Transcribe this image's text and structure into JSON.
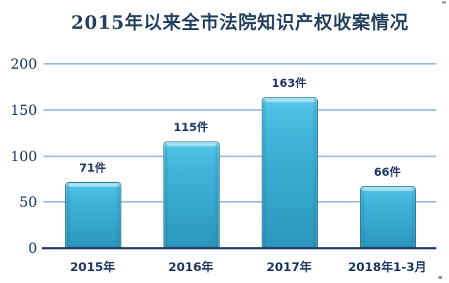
{
  "chart_data": {
    "type": "bar",
    "title": "2015年以来全市法院知识产权收案情况",
    "categories": [
      "2015年",
      "2016年",
      "2017年",
      "2018年1-3月"
    ],
    "values": [
      71,
      115,
      163,
      66
    ],
    "data_labels": [
      "71件",
      "115件",
      "163件",
      "66件"
    ],
    "unit": "件",
    "xlabel": "",
    "ylabel": "",
    "ylim": [
      0,
      200
    ],
    "yticks": [
      0,
      50,
      100,
      150,
      200
    ],
    "grid": true,
    "legend": false,
    "bar_color": "#3FB3D9",
    "bar_color_light": "#60D0EF",
    "bar_color_dark": "#2C96BC",
    "bar_border_color": "#1E81A4",
    "gridline_color": "#9FBCE0",
    "axis_line_color": "#1F3864",
    "text_color": "#1F3864",
    "title_color": "#23405E",
    "background_color": "#FFFFFF"
  }
}
